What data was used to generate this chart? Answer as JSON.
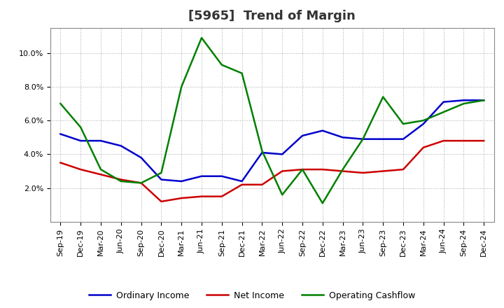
{
  "title": "[5965]  Trend of Margin",
  "x_labels": [
    "Sep-19",
    "Dec-19",
    "Mar-20",
    "Jun-20",
    "Sep-20",
    "Dec-20",
    "Mar-21",
    "Jun-21",
    "Sep-21",
    "Dec-21",
    "Mar-22",
    "Jun-22",
    "Sep-22",
    "Dec-22",
    "Mar-23",
    "Jun-23",
    "Sep-23",
    "Dec-23",
    "Mar-24",
    "Jun-24",
    "Sep-24",
    "Dec-24"
  ],
  "ordinary_income": [
    5.2,
    4.8,
    4.8,
    4.5,
    3.8,
    2.5,
    2.4,
    2.7,
    2.7,
    2.4,
    4.1,
    4.0,
    5.1,
    5.4,
    5.0,
    4.9,
    4.9,
    4.9,
    5.8,
    7.1,
    7.2,
    7.2
  ],
  "net_income": [
    3.5,
    3.1,
    2.8,
    2.5,
    2.3,
    1.2,
    1.4,
    1.5,
    1.5,
    2.2,
    2.2,
    3.0,
    3.1,
    3.1,
    3.0,
    2.9,
    3.0,
    3.1,
    4.4,
    4.8,
    4.8,
    4.8
  ],
  "operating_cashflow": [
    7.0,
    5.6,
    3.1,
    2.4,
    2.3,
    2.9,
    8.0,
    10.9,
    9.3,
    8.8,
    4.2,
    1.6,
    3.1,
    1.1,
    3.1,
    4.9,
    7.4,
    5.8,
    6.0,
    6.5,
    7.0,
    7.2
  ],
  "ordinary_income_color": "#0000cc",
  "net_income_color": "#cc0000",
  "operating_cashflow_color": "#008000",
  "ylim_min": 0,
  "ylim_max": 11.5,
  "yticks": [
    2.0,
    4.0,
    6.0,
    8.0,
    10.0
  ],
  "background_color": "#ffffff",
  "grid_color": "#aaaaaa",
  "title_fontsize": 13,
  "title_color": "#333333",
  "tick_fontsize": 8,
  "legend_labels": [
    "Ordinary Income",
    "Net Income",
    "Operating Cashflow"
  ],
  "line_width": 1.8
}
